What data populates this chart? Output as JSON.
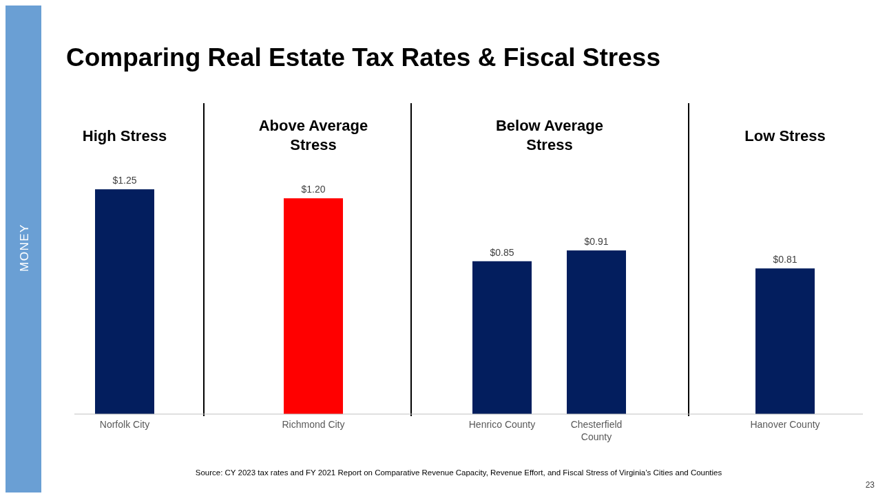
{
  "chart_data": {
    "type": "bar",
    "title": "Comparing Real Estate Tax Rates & Fiscal Stress",
    "categories": [
      "Norfolk City",
      "Richmond City",
      "Henrico County",
      "Chesterfield County",
      "Hanover County"
    ],
    "values": [
      1.25,
      1.2,
      0.85,
      0.91,
      0.81
    ],
    "colors": [
      "#031e5e",
      "#ff0000",
      "#031e5e",
      "#031e5e",
      "#031e5e"
    ],
    "value_labels": [
      "$1.25",
      "$1.20",
      "$0.85",
      "$0.91",
      "$0.81"
    ],
    "relative": false,
    "annotations": [
      "High Stress",
      "Above Average Stress",
      "Below Average Stress",
      "Low Stress",
      "Source: CY 2023 tax rates and FY 2021 Report on Comparative Revenue Capacity, Revenue Effort, and Fiscal Stress of Virginia’s Cities and Counties",
      "MONEY",
      "23"
    ]
  }
}
